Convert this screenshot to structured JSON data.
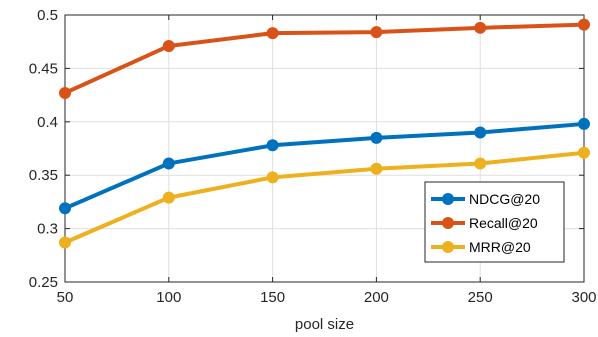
{
  "chart_data": {
    "type": "line",
    "xlabel": "pool size",
    "ylabel": "",
    "x": [
      50,
      100,
      150,
      200,
      250,
      300
    ],
    "xlim": [
      50,
      300
    ],
    "ylim": [
      0.25,
      0.5
    ],
    "xticks": [
      50,
      100,
      150,
      200,
      250,
      300
    ],
    "yticks": [
      0.25,
      0.3,
      0.35,
      0.4,
      0.45,
      0.5
    ],
    "x_tick_labels": [
      "50",
      "100",
      "150",
      "200",
      "250",
      "300"
    ],
    "y_tick_labels": [
      "0.25",
      "0.3",
      "0.35",
      "0.4",
      "0.45",
      "0.5"
    ],
    "grid": true,
    "legend_position": "lower-right",
    "series": [
      {
        "name": "NDCG@20",
        "color": "#0072BD",
        "values": [
          0.319,
          0.361,
          0.378,
          0.385,
          0.39,
          0.398
        ]
      },
      {
        "name": "Recall@20",
        "color": "#D95319",
        "values": [
          0.427,
          0.471,
          0.483,
          0.484,
          0.488,
          0.491
        ]
      },
      {
        "name": "MRR@20",
        "color": "#EDB120",
        "values": [
          0.287,
          0.329,
          0.348,
          0.356,
          0.361,
          0.371
        ]
      }
    ]
  }
}
